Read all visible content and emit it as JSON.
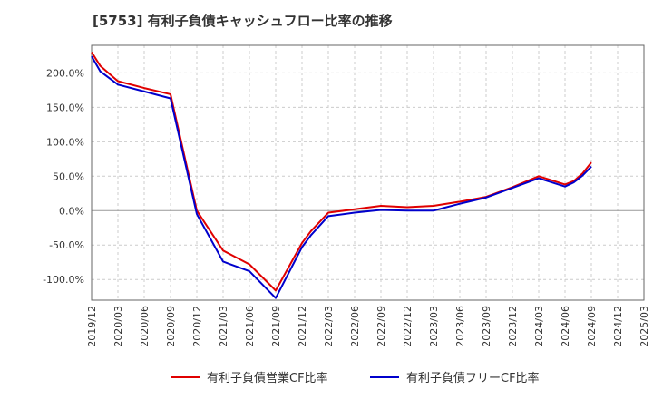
{
  "chart_data": {
    "type": "line",
    "title": "[5753]  有利子負債キャッシュフロー比率の推移",
    "xlabel": "",
    "ylabel": "",
    "ylim": [
      -130,
      240
    ],
    "y_ticks": [
      200,
      150,
      100,
      50,
      0,
      -50,
      -100
    ],
    "y_tick_labels": [
      "200.0%",
      "150.0%",
      "100.0%",
      "50.0%",
      "0.0%",
      "-50.0%",
      "-100.0%"
    ],
    "x_tick_labels": [
      "2019/12",
      "2020/03",
      "2020/06",
      "2020/09",
      "2020/12",
      "2021/03",
      "2021/06",
      "2021/09",
      "2021/12",
      "2022/03",
      "2022/06",
      "2022/09",
      "2022/12",
      "2023/03",
      "2023/06",
      "2023/09",
      "2023/12",
      "2024/03",
      "2024/06",
      "2024/09",
      "2024/12",
      "2025/03"
    ],
    "grid": true,
    "legend_position": "bottom",
    "series": [
      {
        "name": "有利子負債営業CF比率",
        "color": "#e00000",
        "points": [
          [
            "2019/12",
            230
          ],
          [
            "2020/01",
            210
          ],
          [
            "2020/03",
            188
          ],
          [
            "2020/06",
            178
          ],
          [
            "2020/09",
            169
          ],
          [
            "2020/12",
            0
          ],
          [
            "2021/03",
            -58
          ],
          [
            "2021/06",
            -78
          ],
          [
            "2021/09",
            -116
          ],
          [
            "2021/12",
            -47
          ],
          [
            "2022/01",
            -30
          ],
          [
            "2022/03",
            -3
          ],
          [
            "2022/06",
            2
          ],
          [
            "2022/09",
            7
          ],
          [
            "2022/12",
            5
          ],
          [
            "2023/03",
            7
          ],
          [
            "2023/06",
            13
          ],
          [
            "2023/09",
            20
          ],
          [
            "2023/12",
            34
          ],
          [
            "2024/03",
            50
          ],
          [
            "2024/06",
            38
          ],
          [
            "2024/07",
            43
          ],
          [
            "2024/08",
            54
          ],
          [
            "2024/09",
            70
          ]
        ]
      },
      {
        "name": "有利子負債フリーCF比率",
        "color": "#0000cc",
        "points": [
          [
            "2019/12",
            224
          ],
          [
            "2020/01",
            202
          ],
          [
            "2020/03",
            183
          ],
          [
            "2020/06",
            173
          ],
          [
            "2020/09",
            163
          ],
          [
            "2020/12",
            -5
          ],
          [
            "2021/03",
            -74
          ],
          [
            "2021/06",
            -88
          ],
          [
            "2021/09",
            -127
          ],
          [
            "2021/12",
            -53
          ],
          [
            "2022/01",
            -36
          ],
          [
            "2022/03",
            -8
          ],
          [
            "2022/06",
            -3
          ],
          [
            "2022/09",
            1
          ],
          [
            "2022/12",
            0
          ],
          [
            "2023/03",
            0
          ],
          [
            "2023/06",
            10
          ],
          [
            "2023/09",
            19
          ],
          [
            "2023/12",
            33
          ],
          [
            "2024/03",
            47
          ],
          [
            "2024/06",
            35
          ],
          [
            "2024/07",
            41
          ],
          [
            "2024/08",
            51
          ],
          [
            "2024/09",
            64
          ]
        ]
      }
    ]
  }
}
